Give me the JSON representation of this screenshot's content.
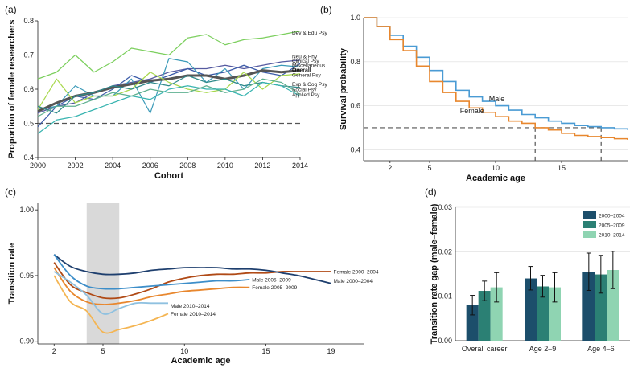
{
  "chart_data": [
    {
      "panel": "(a)",
      "type": "line",
      "xlabel": "Cohort",
      "ylabel": "Proportion of female researchers",
      "xlim": [
        2000,
        2014
      ],
      "ylim": [
        0.4,
        0.8
      ],
      "xticks": [
        2000,
        2002,
        2004,
        2006,
        2008,
        2010,
        2012,
        2014
      ],
      "yticks": [
        0.4,
        0.5,
        0.6,
        0.7,
        0.8
      ],
      "reference_line": 0.5,
      "x": [
        2000,
        2001,
        2002,
        2003,
        2004,
        2005,
        2006,
        2007,
        2008,
        2009,
        2010,
        2011,
        2012,
        2013,
        2014
      ],
      "series": [
        {
          "name": "Dev & Edu Psy",
          "color": "#7ccf5e",
          "values": [
            0.63,
            0.65,
            0.7,
            0.65,
            0.68,
            0.72,
            0.71,
            0.7,
            0.75,
            0.76,
            0.73,
            0.745,
            0.75,
            0.76,
            0.77
          ]
        },
        {
          "name": "Neu & Phy",
          "color": "#555aa0",
          "values": [
            0.53,
            0.55,
            0.56,
            0.59,
            0.61,
            0.62,
            0.63,
            0.65,
            0.66,
            0.66,
            0.67,
            0.66,
            0.67,
            0.68,
            0.685
          ]
        },
        {
          "name": "Clinical Psy",
          "color": "#3a5aa8",
          "values": [
            0.49,
            0.55,
            0.58,
            0.57,
            0.6,
            0.64,
            0.62,
            0.64,
            0.66,
            0.64,
            0.65,
            0.67,
            0.65,
            0.64,
            0.675
          ]
        },
        {
          "name": "Miscellaneous",
          "color": "#3b9ab8",
          "values": [
            0.54,
            0.55,
            0.61,
            0.58,
            0.58,
            0.63,
            0.53,
            0.69,
            0.68,
            0.62,
            0.66,
            0.6,
            0.66,
            0.67,
            0.665
          ]
        },
        {
          "name": "Overall",
          "color": "#555555",
          "values": [
            0.535,
            0.56,
            0.58,
            0.59,
            0.605,
            0.615,
            0.625,
            0.63,
            0.64,
            0.64,
            0.63,
            0.64,
            0.655,
            0.65,
            0.655
          ]
        },
        {
          "name": "General Psy",
          "color": "#a8d84c",
          "values": [
            0.54,
            0.63,
            0.56,
            0.58,
            0.58,
            0.6,
            0.65,
            0.62,
            0.6,
            0.59,
            0.6,
            0.65,
            0.6,
            0.64,
            0.645
          ]
        },
        {
          "name": "Exp & Cog Psy",
          "color": "#2f8a8a",
          "values": [
            0.55,
            0.53,
            0.58,
            0.59,
            0.61,
            0.6,
            0.62,
            0.61,
            0.64,
            0.62,
            0.63,
            0.61,
            0.62,
            0.61,
            0.605
          ]
        },
        {
          "name": "Social Psy",
          "color": "#5fb090",
          "values": [
            0.52,
            0.55,
            0.55,
            0.57,
            0.59,
            0.58,
            0.6,
            0.59,
            0.59,
            0.61,
            0.59,
            0.6,
            0.63,
            0.62,
            0.585
          ]
        },
        {
          "name": "Applied Psy",
          "color": "#38b4b0",
          "values": [
            0.47,
            0.51,
            0.52,
            0.54,
            0.56,
            0.58,
            0.57,
            0.6,
            0.61,
            0.6,
            0.6,
            0.58,
            0.62,
            0.61,
            0.58
          ]
        }
      ]
    },
    {
      "panel": "(b)",
      "type": "line",
      "subtype": "step",
      "xlabel": "Academic age",
      "ylabel": "Survival probability",
      "xlim": [
        0,
        20
      ],
      "ylim": [
        0.35,
        1.0
      ],
      "xticks": [
        2,
        5,
        10,
        15
      ],
      "yticks": [
        0.4,
        0.6,
        0.8,
        1.0
      ],
      "reference_line": 0.5,
      "median_marks": [
        13,
        18
      ],
      "series": [
        {
          "name": "Male",
          "color": "#4a9bd4",
          "x": [
            0,
            1,
            2,
            3,
            4,
            5,
            6,
            7,
            8,
            9,
            10,
            11,
            12,
            13,
            14,
            15,
            16,
            17,
            18,
            19,
            20
          ],
          "values": [
            1.0,
            0.96,
            0.92,
            0.87,
            0.82,
            0.76,
            0.71,
            0.67,
            0.64,
            0.62,
            0.6,
            0.58,
            0.56,
            0.545,
            0.53,
            0.52,
            0.51,
            0.505,
            0.5,
            0.495,
            0.49
          ]
        },
        {
          "name": "Female",
          "color": "#e8872e",
          "x": [
            0,
            1,
            2,
            3,
            4,
            5,
            6,
            7,
            8,
            9,
            10,
            11,
            12,
            13,
            14,
            15,
            16,
            17,
            18,
            19,
            20
          ],
          "values": [
            1.0,
            0.96,
            0.9,
            0.85,
            0.78,
            0.71,
            0.66,
            0.62,
            0.59,
            0.57,
            0.55,
            0.53,
            0.52,
            0.5,
            0.49,
            0.475,
            0.465,
            0.46,
            0.455,
            0.45,
            0.445
          ]
        }
      ]
    },
    {
      "panel": "(c)",
      "type": "line",
      "xlabel": "Academic age",
      "ylabel": "Transition rate",
      "xlim": [
        1,
        21
      ],
      "ylim": [
        0.898,
        1.005
      ],
      "xticks": [
        2,
        5,
        10,
        15,
        19
      ],
      "yticks": [
        0.9,
        0.95,
        1.0
      ],
      "shaded_x_range": [
        4,
        6
      ],
      "series": [
        {
          "name": "Female 2000–2004",
          "color": "#b04a16",
          "x": [
            2,
            3,
            4,
            5,
            6,
            7,
            8,
            9,
            10,
            11,
            12,
            13,
            14,
            15,
            16,
            17,
            18,
            19
          ],
          "values": [
            0.96,
            0.943,
            0.937,
            0.933,
            0.933,
            0.936,
            0.94,
            0.945,
            0.948,
            0.95,
            0.951,
            0.951,
            0.952,
            0.952,
            0.953,
            0.953,
            0.953,
            0.953
          ]
        },
        {
          "name": "Male 2000–2004",
          "color": "#1e3f6e",
          "x": [
            2,
            3,
            4,
            5,
            6,
            7,
            8,
            9,
            10,
            11,
            12,
            13,
            14,
            15,
            16,
            17,
            18,
            19
          ],
          "values": [
            0.966,
            0.957,
            0.953,
            0.951,
            0.951,
            0.952,
            0.954,
            0.955,
            0.956,
            0.956,
            0.956,
            0.955,
            0.955,
            0.954,
            0.952,
            0.95,
            0.947,
            0.944
          ]
        },
        {
          "name": "Male 2005–2009",
          "color": "#3d8ec9",
          "x": [
            2,
            3,
            4,
            5,
            6,
            7,
            8,
            9,
            10,
            11,
            12,
            13,
            14
          ],
          "values": [
            0.966,
            0.95,
            0.942,
            0.94,
            0.94,
            0.941,
            0.942,
            0.943,
            0.944,
            0.945,
            0.946,
            0.946,
            0.947
          ]
        },
        {
          "name": "Female 2005–2009",
          "color": "#e8872e",
          "x": [
            2,
            3,
            4,
            5,
            6,
            7,
            8,
            9,
            10,
            11,
            12,
            13,
            14
          ],
          "values": [
            0.956,
            0.938,
            0.93,
            0.928,
            0.929,
            0.931,
            0.934,
            0.936,
            0.938,
            0.939,
            0.94,
            0.941,
            0.941
          ]
        },
        {
          "name": "Male 2010–2014",
          "color": "#8fc1e0",
          "x": [
            2,
            3,
            4,
            5,
            6,
            7,
            8,
            9
          ],
          "values": [
            0.953,
            0.945,
            0.935,
            0.921,
            0.925,
            0.929,
            0.929,
            0.929
          ]
        },
        {
          "name": "Female 2010–2014",
          "color": "#f4b553",
          "x": [
            2,
            3,
            4,
            5,
            6,
            7,
            8,
            9
          ],
          "values": [
            0.95,
            0.93,
            0.923,
            0.907,
            0.909,
            0.912,
            0.916,
            0.921
          ]
        }
      ]
    },
    {
      "panel": "(d)",
      "type": "bar",
      "xlabel": "",
      "ylabel": "Transition rate gap (male–female)",
      "ylim": [
        0,
        0.03
      ],
      "yticks": [
        0.0,
        0.01,
        0.02,
        0.03
      ],
      "categories": [
        "Overall career",
        "Age 2–9",
        "Age 4–6"
      ],
      "series": [
        {
          "name": "2000–2004",
          "color": "#1c4e6b",
          "values": [
            0.008,
            0.014,
            0.0155
          ],
          "err_low": [
            0.0058,
            0.0114,
            0.0113
          ],
          "err_high": [
            0.0102,
            0.0167,
            0.0197
          ]
        },
        {
          "name": "2005–2009",
          "color": "#2b8074",
          "values": [
            0.0112,
            0.0122,
            0.0149
          ],
          "err_low": [
            0.009,
            0.0098,
            0.0107
          ],
          "err_high": [
            0.0134,
            0.0147,
            0.0192
          ]
        },
        {
          "name": "2010–2014",
          "color": "#8fd4b2",
          "values": [
            0.012,
            0.012,
            0.0159
          ],
          "err_low": [
            0.0087,
            0.0087,
            0.0117
          ],
          "err_high": [
            0.0153,
            0.0153,
            0.0201
          ]
        }
      ]
    }
  ],
  "panels": {
    "a": {
      "label": "(a)"
    },
    "b": {
      "label": "(b)"
    },
    "c": {
      "label": "(c)"
    },
    "d": {
      "label": "(d)"
    }
  },
  "annotations_b": {
    "male": "Male",
    "female": "Female"
  },
  "labels_a": {
    "overall": "Overall",
    "others": [
      "Dev & Edu Psy",
      "Neu & Phy",
      "Clinical Psy",
      "Miscellaneous",
      "General Psy",
      "Exp & Cog Psy",
      "Social  Psy",
      "Applied  Psy"
    ]
  }
}
